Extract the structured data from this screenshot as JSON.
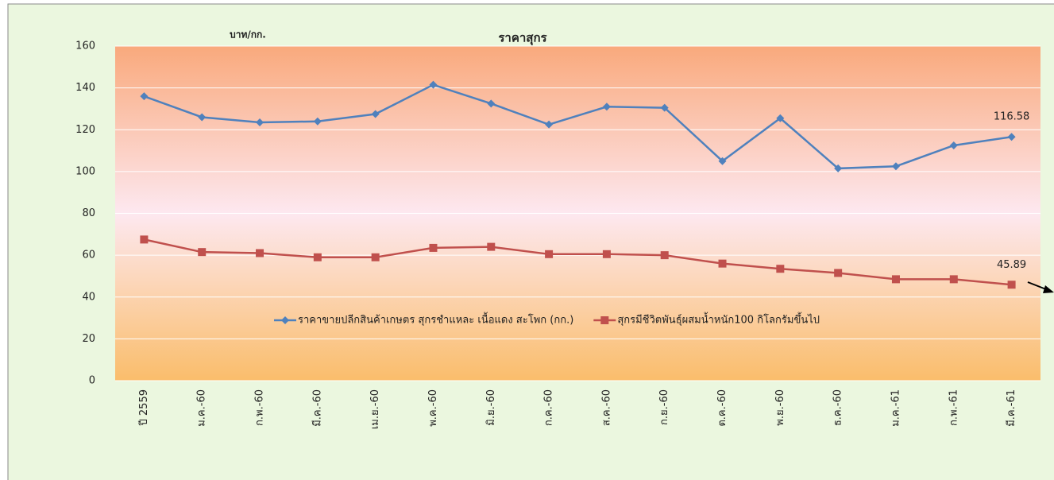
{
  "chart_data": {
    "type": "line",
    "title": "ราคาสุกร",
    "y_label": "บาท/กก.",
    "categories": [
      "ปี 2559",
      "ม.ค.-60",
      "ก.พ.-60",
      "มี.ค.-60",
      "เม.ย.-60",
      "พ.ค.-60",
      "มิ.ย.-60",
      "ก.ค.-60",
      "ส.ค.-60",
      "ก.ย.-60",
      "ต.ค.-60",
      "พ.ย.-60",
      "ธ.ค.-60",
      "ม.ค.-61",
      "ก.พ.-61",
      "มี.ค.-61"
    ],
    "series": [
      {
        "name": "ราคาขายปลีกสินค้าเกษตร สุกรชำแหละ เนื้อแดง สะโพก (กก.)",
        "color": "#4f81bd",
        "marker": "diamond",
        "values": [
          136,
          126,
          123.5,
          124,
          127.5,
          141.5,
          132.5,
          122.5,
          131,
          130.5,
          105,
          125.5,
          101.5,
          102.5,
          112.5,
          116.58
        ]
      },
      {
        "name": "สุกรมีชีวิตพันธุ์ผสมน้ำหนัก100 กิโลกรัมขึ้นไป",
        "color": "#c0504d",
        "marker": "square",
        "values": [
          67.5,
          61.5,
          61,
          59,
          59,
          63.5,
          64,
          60.5,
          60.5,
          60,
          56,
          53.5,
          51.5,
          48.5,
          48.5,
          45.89
        ]
      }
    ],
    "ylim": [
      0,
      160
    ],
    "yticks": [
      0,
      20,
      40,
      60,
      80,
      100,
      120,
      140,
      160
    ],
    "grid": true
  }
}
